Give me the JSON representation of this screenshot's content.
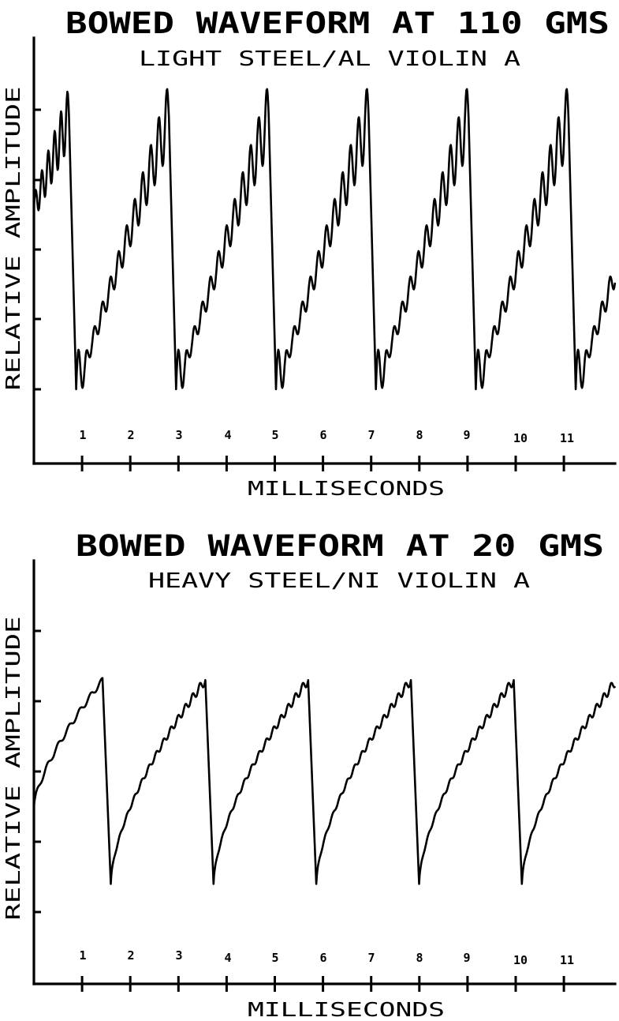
{
  "chart_data": [
    {
      "type": "line",
      "title": "BOWED WAVEFORM AT 110 GMS",
      "subtitle": "LIGHT STEEL/AL VIOLIN A",
      "xlabel": "MILLISECONDS",
      "ylabel": "RELATIVE AMPLITUDE",
      "x_ticks": [
        "1",
        "2",
        "3",
        "4",
        "5",
        "6",
        "7",
        "8",
        "9",
        "10",
        "11"
      ],
      "xlim": [
        0,
        12.1
      ],
      "ylim": [
        -1,
        5
      ],
      "y_ticks": [
        0,
        1,
        2,
        3,
        4
      ],
      "period_ms": 2.08,
      "peak_times_ms": [
        0.73,
        2.81,
        4.89,
        6.97,
        9.05,
        11.13
      ],
      "trough_times_ms": [
        0.88,
        2.96,
        5.04,
        7.12,
        9.2,
        11.28
      ],
      "peak_amplitude": 3.9,
      "trough_amplitude": 0.0,
      "ripple": "strong",
      "grid": false,
      "series": [
        {
          "values_description_x": [
            0,
            0.73,
            0.88,
            2.81,
            2.96,
            4.89,
            5.04,
            6.97,
            7.12,
            9.05,
            9.2,
            11.13,
            11.28,
            12.1
          ],
          "values": [
            2.6,
            3.9,
            0.0,
            3.7,
            0.0,
            3.7,
            0.0,
            3.8,
            0.0,
            3.7,
            0.0,
            4.0,
            0.0,
            1.3
          ]
        }
      ]
    },
    {
      "type": "line",
      "title": "BOWED WAVEFORM AT 20 GMS",
      "subtitle": "HEAVY STEEL/NI VIOLIN A",
      "xlabel": "MILLISECONDS",
      "ylabel": "RELATIVE AMPLITUDE",
      "x_ticks": [
        "1",
        "2",
        "3",
        "4",
        "5",
        "6",
        "7",
        "8",
        "9",
        "10",
        "11"
      ],
      "xlim": [
        0,
        12.1
      ],
      "ylim": [
        -1,
        5
      ],
      "y_ticks": [
        0,
        1,
        2,
        3,
        4
      ],
      "period_ms": 2.14,
      "peak_times_ms": [
        1.43,
        3.57,
        5.71,
        7.85,
        9.99
      ],
      "trough_times_ms": [
        1.6,
        3.74,
        5.88,
        8.02,
        10.16
      ],
      "peak_amplitude": 3.3,
      "trough_amplitude": 0.4,
      "ripple": "light",
      "grid": false,
      "series": [
        {
          "values_description_x": [
            0,
            1.43,
            1.6,
            3.57,
            3.74,
            5.71,
            5.88,
            7.85,
            8.02,
            9.99,
            10.16,
            12.1
          ],
          "values": [
            1.5,
            3.3,
            0.4,
            3.3,
            0.4,
            3.3,
            0.4,
            3.3,
            0.4,
            3.3,
            0.4,
            3.1
          ]
        }
      ]
    }
  ]
}
